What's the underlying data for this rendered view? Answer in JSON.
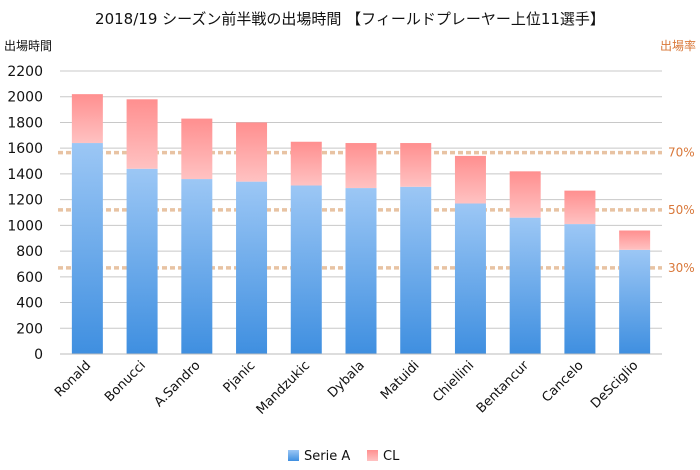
{
  "chart_data": {
    "type": "bar",
    "stacked": true,
    "title": "2018/19 シーズン前半戦の出場時間 【フィールドプレーヤー上位11選手】",
    "ylabel": "出場時間",
    "y2label": "出場率",
    "ylim": [
      0,
      2200
    ],
    "yticks": [
      0,
      200,
      400,
      600,
      800,
      1000,
      1200,
      1400,
      1600,
      1800,
      2000,
      2200
    ],
    "categories": [
      "Ronald",
      "Bonucci",
      "A.Sandro",
      "Pjanic",
      "Mandzukic",
      "Dybala",
      "Matuidi",
      "Chiellini",
      "Bentancur",
      "Cancelo",
      "DeSciglio"
    ],
    "series": [
      {
        "name": "Serie A",
        "values": [
          1640,
          1440,
          1360,
          1340,
          1310,
          1290,
          1300,
          1170,
          1060,
          1010,
          810
        ]
      },
      {
        "name": "CL",
        "values": [
          380,
          540,
          470,
          460,
          340,
          350,
          340,
          370,
          360,
          260,
          150
        ]
      }
    ],
    "reference_lines": [
      {
        "label": "30%",
        "y": 670
      },
      {
        "label": "50%",
        "y": 1120
      },
      {
        "label": "70%",
        "y": 1565
      }
    ],
    "grid": true,
    "legend": "bottom",
    "colors": {
      "serie_a": "#4a90e2",
      "cl": "#f06a6a",
      "reference": "#e8c3a3",
      "right_axis": "#d9783a"
    }
  }
}
